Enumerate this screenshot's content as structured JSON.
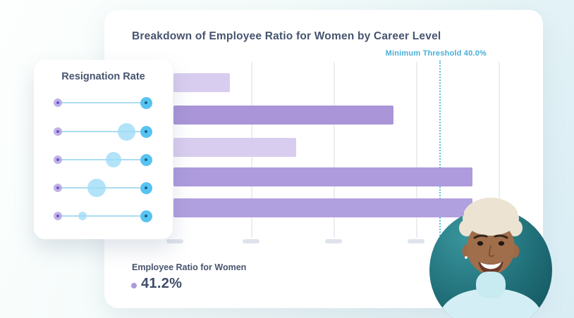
{
  "main_card": {
    "title": "Breakdown of Employee Ratio for Women by Career Level",
    "footer": {
      "label": "Employee Ratio for Women",
      "value": "41.2%"
    }
  },
  "chart_data": {
    "type": "bar",
    "orientation": "horizontal",
    "title": "Breakdown of Employee Ratio for Women by Career Level",
    "categories": [
      "",
      "",
      "",
      "",
      ""
    ],
    "values": [
      8.5,
      33.1,
      18.5,
      45.0,
      45.0
    ],
    "unit": "%",
    "xlim": [
      0,
      54
    ],
    "grid": true,
    "x_tick_labels": [
      "",
      "",
      "",
      ""
    ],
    "threshold": {
      "label": "Minimum Threshold 40.0%",
      "value": 40.0
    },
    "bar_colors": [
      "#d9cdef",
      "#a995d8",
      "#d9cdef",
      "#ad9bdd",
      "#b1a0df"
    ],
    "summary": {
      "label": "Employee Ratio for Women",
      "value_pct": 41.2
    }
  },
  "resignation": {
    "title": "Resignation Rate",
    "sliders": [
      {
        "bubble_pos_pct": null,
        "bubble_r": 0
      },
      {
        "bubble_pos_pct": 78,
        "bubble_r": 12.5
      },
      {
        "bubble_pos_pct": 63,
        "bubble_r": 11
      },
      {
        "bubble_pos_pct": 44,
        "bubble_r": 13
      },
      {
        "bubble_pos_pct": 28,
        "bubble_r": 6
      }
    ]
  },
  "photo": {
    "description": "Smiling woman with short platinum hair wearing a light blue turtleneck on a teal circle"
  },
  "colors": {
    "accent_teal": "#4aaed6",
    "threshold_line": "#5fc0dd",
    "text_dark": "#47546f",
    "bullet_purple": "#a99bd8",
    "slider_handle": "#57c3f0",
    "slider_bubble": "#9fdcf7",
    "slider_origin": "#b5a3e3",
    "tick_pill": "#dfe3eb",
    "photo_teal_dark": "#14525c",
    "photo_teal_light": "#3a969e"
  }
}
